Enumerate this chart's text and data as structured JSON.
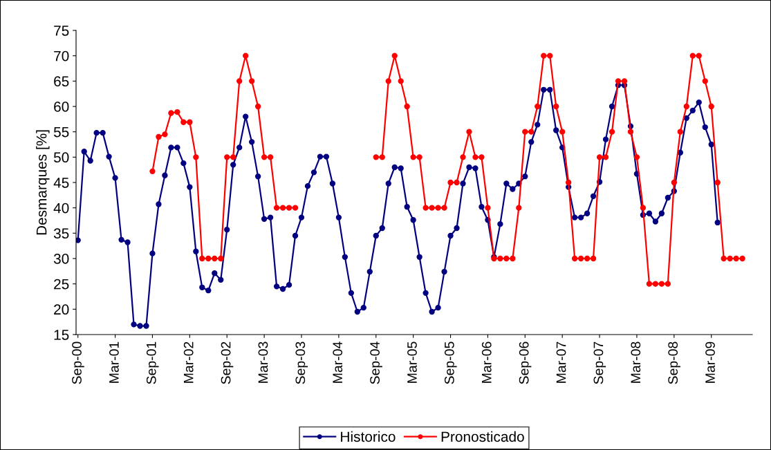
{
  "chart_data": {
    "type": "line",
    "ylabel": "Desmarques [%]",
    "categories": [
      "Sep-00",
      null,
      null,
      null,
      null,
      null,
      "Mar-01",
      null,
      null,
      null,
      null,
      null,
      "Sep-01",
      null,
      null,
      null,
      null,
      null,
      "Mar-02",
      null,
      null,
      null,
      null,
      null,
      "Sep-02",
      null,
      null,
      null,
      null,
      null,
      "Mar-03",
      null,
      null,
      null,
      null,
      null,
      "Sep-03",
      null,
      null,
      null,
      null,
      null,
      "Mar-04",
      null,
      null,
      null,
      null,
      null,
      "Sep-04",
      null,
      null,
      null,
      null,
      null,
      "Mar-05",
      null,
      null,
      null,
      null,
      null,
      "Sep-05",
      null,
      null,
      null,
      null,
      null,
      "Mar-06",
      null,
      null,
      null,
      null,
      null,
      "Sep-06",
      null,
      null,
      null,
      null,
      null,
      "Mar-07",
      null,
      null,
      null,
      null,
      null,
      "Sep-07",
      null,
      null,
      null,
      null,
      null,
      "Mar-08",
      null,
      null,
      null,
      null,
      null,
      "Sep-08",
      null,
      null,
      null,
      null,
      null,
      "Mar-09",
      null,
      null,
      null,
      null,
      null
    ],
    "series": [
      {
        "name": "Historico",
        "color": "#000080",
        "values": [
          33.6,
          51.1,
          49.3,
          54.8,
          54.8,
          50.1,
          45.9,
          33.7,
          33.2,
          17.0,
          16.7,
          16.7,
          31.0,
          40.7,
          46.4,
          51.9,
          51.9,
          48.8,
          44.1,
          31.4,
          24.3,
          23.7,
          27.1,
          25.8,
          35.7,
          48.5,
          51.9,
          58.0,
          53.0,
          46.2,
          37.8,
          38.1,
          24.5,
          24.0,
          24.8,
          34.5,
          38.1,
          44.3,
          47.0,
          50.1,
          50.1,
          44.8,
          38.1,
          30.3,
          23.2,
          19.5,
          20.3,
          27.4,
          34.5,
          36.0,
          44.8,
          48.0,
          47.8,
          40.2,
          37.6,
          30.3,
          23.2,
          19.5,
          20.3,
          27.4,
          34.5,
          36.0,
          44.8,
          48.0,
          47.8,
          40.2,
          37.6,
          30.3,
          36.8,
          44.8,
          43.7,
          44.8,
          46.2,
          53.0,
          56.4,
          63.3,
          63.3,
          55.3,
          51.9,
          44.1,
          38.1,
          38.1,
          38.9,
          42.3,
          45.1,
          53.5,
          60.0,
          64.2,
          64.2,
          56.1,
          46.7,
          38.6,
          38.9,
          37.3,
          38.9,
          42.0,
          43.3,
          50.9,
          57.7,
          59.2,
          60.8,
          55.9,
          52.5,
          37.1,
          null,
          null,
          null,
          null
        ]
      },
      {
        "name": "Pronosticado",
        "color": "#ff0000",
        "values": [
          null,
          null,
          null,
          null,
          null,
          null,
          null,
          null,
          null,
          null,
          null,
          null,
          47.2,
          54,
          54.5,
          58.7,
          58.9,
          56.9,
          56.9,
          50,
          30,
          30,
          30,
          30,
          50,
          50,
          65,
          70,
          65,
          60,
          50,
          50,
          40,
          40,
          40,
          40,
          null,
          null,
          null,
          null,
          null,
          null,
          null,
          null,
          null,
          null,
          null,
          null,
          50,
          50,
          65,
          70,
          65,
          60,
          50,
          50,
          40,
          40,
          40,
          40,
          45,
          45,
          50,
          55,
          50,
          50,
          40,
          30,
          30,
          30,
          30,
          40,
          55,
          55,
          60,
          70,
          70,
          60,
          55,
          45,
          30,
          30,
          30,
          30,
          50,
          50,
          55,
          65,
          65,
          55,
          50,
          40,
          25,
          25,
          25,
          25,
          45,
          55,
          60,
          70,
          70,
          65,
          60,
          45,
          30,
          30,
          30,
          30
        ]
      }
    ],
    "ylim": [
      15,
      75
    ],
    "yticks": [
      15,
      20,
      25,
      30,
      35,
      40,
      45,
      50,
      55,
      60,
      65,
      70,
      75
    ],
    "grid": false,
    "legend": "bottom",
    "marker": "circle",
    "line_style": "solid"
  }
}
